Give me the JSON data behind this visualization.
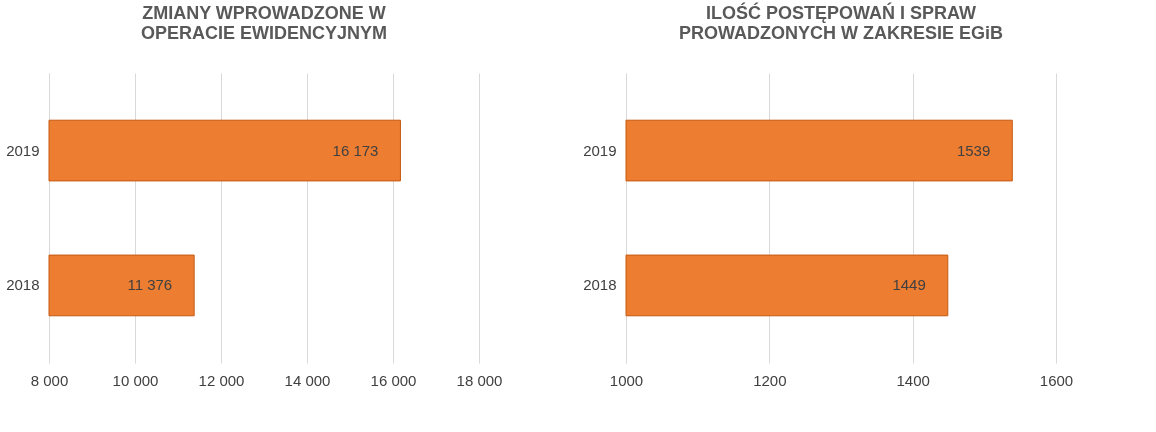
{
  "chart_data": [
    {
      "type": "bar",
      "orientation": "horizontal",
      "title": "ZMIANY WPROWADZONE W OPERACIE EWIDENCYJNYM",
      "categories": [
        "2019",
        "2018"
      ],
      "values": [
        16173,
        11376
      ],
      "color": "#ed7d31",
      "value_labels": [
        "16 173",
        "11 376"
      ],
      "xlim": [
        8000,
        18000
      ],
      "xticks": [
        {
          "value": 8000,
          "label": "8 000"
        },
        {
          "value": 10000,
          "label": "10 000"
        },
        {
          "value": 12000,
          "label": "12 000"
        },
        {
          "value": 14000,
          "label": "14 000"
        },
        {
          "value": 16000,
          "label": "16 000"
        },
        {
          "value": 18000,
          "label": "18 000"
        }
      ],
      "grid": "x",
      "legend": false
    },
    {
      "type": "bar",
      "orientation": "horizontal",
      "title": "ILOŚĆ POSTĘPOWAŃ I SPRAW PROWADZONYCH W ZAKRESIE EGiB",
      "categories": [
        "2019",
        "2018"
      ],
      "values": [
        1539,
        1449
      ],
      "color": "#ed7d31",
      "data_labels": true,
      "xlim": [
        1000,
        1600
      ],
      "xticks": [
        1000,
        1200,
        1400,
        1600
      ],
      "grid": "x",
      "legend": false
    }
  ]
}
